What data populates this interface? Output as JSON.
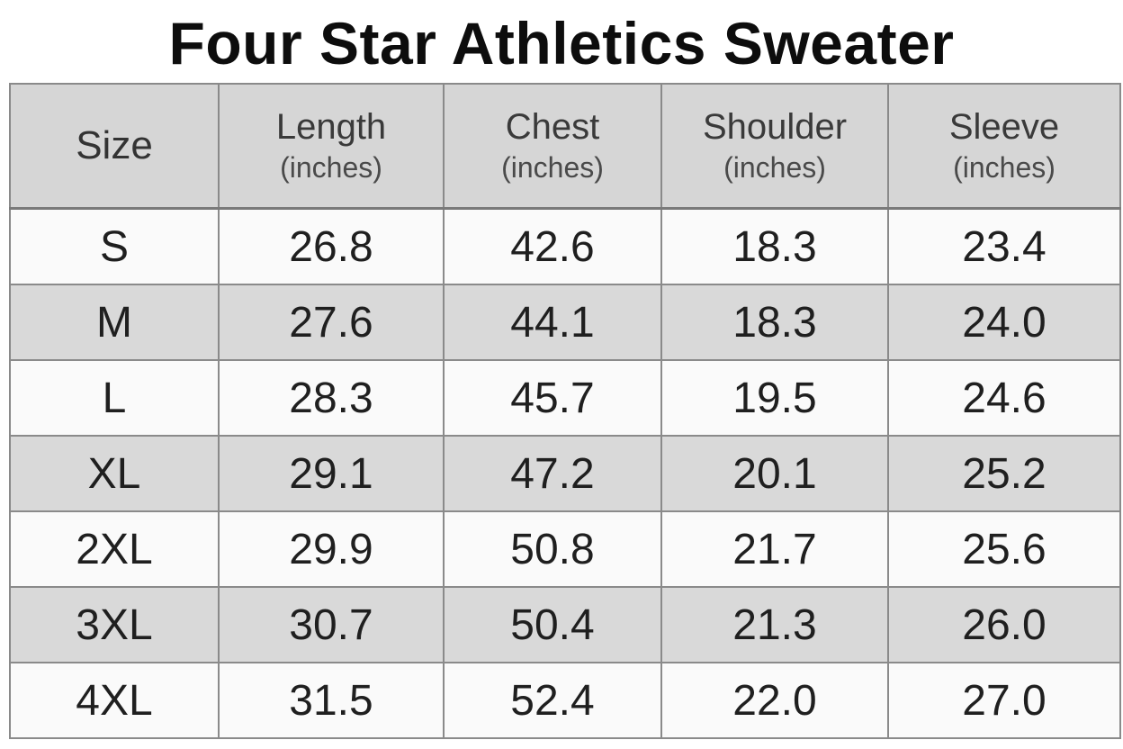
{
  "title": "Four Star Athletics Sweater",
  "table": {
    "headers": [
      {
        "label": "Size",
        "unit": ""
      },
      {
        "label": "Length",
        "unit": "(inches)"
      },
      {
        "label": "Chest",
        "unit": "(inches)"
      },
      {
        "label": "Shoulder",
        "unit": "(inches)"
      },
      {
        "label": "Sleeve",
        "unit": "(inches)"
      }
    ],
    "rows": [
      [
        "S",
        "26.8",
        "42.6",
        "18.3",
        "23.4"
      ],
      [
        "M",
        "27.6",
        "44.1",
        "18.3",
        "24.0"
      ],
      [
        "L",
        "28.3",
        "45.7",
        "19.5",
        "24.6"
      ],
      [
        "XL",
        "29.1",
        "47.2",
        "20.1",
        "25.2"
      ],
      [
        "2XL",
        "29.9",
        "50.8",
        "21.7",
        "25.6"
      ],
      [
        "3XL",
        "30.7",
        "50.4",
        "21.3",
        "26.0"
      ],
      [
        "4XL",
        "31.5",
        "52.4",
        "22.0",
        "27.0"
      ]
    ]
  },
  "colors": {
    "header_bg": "#d6d6d6",
    "row_light": "#fafafa",
    "row_dark": "#d9d9d9",
    "border": "#8a8a8a"
  }
}
